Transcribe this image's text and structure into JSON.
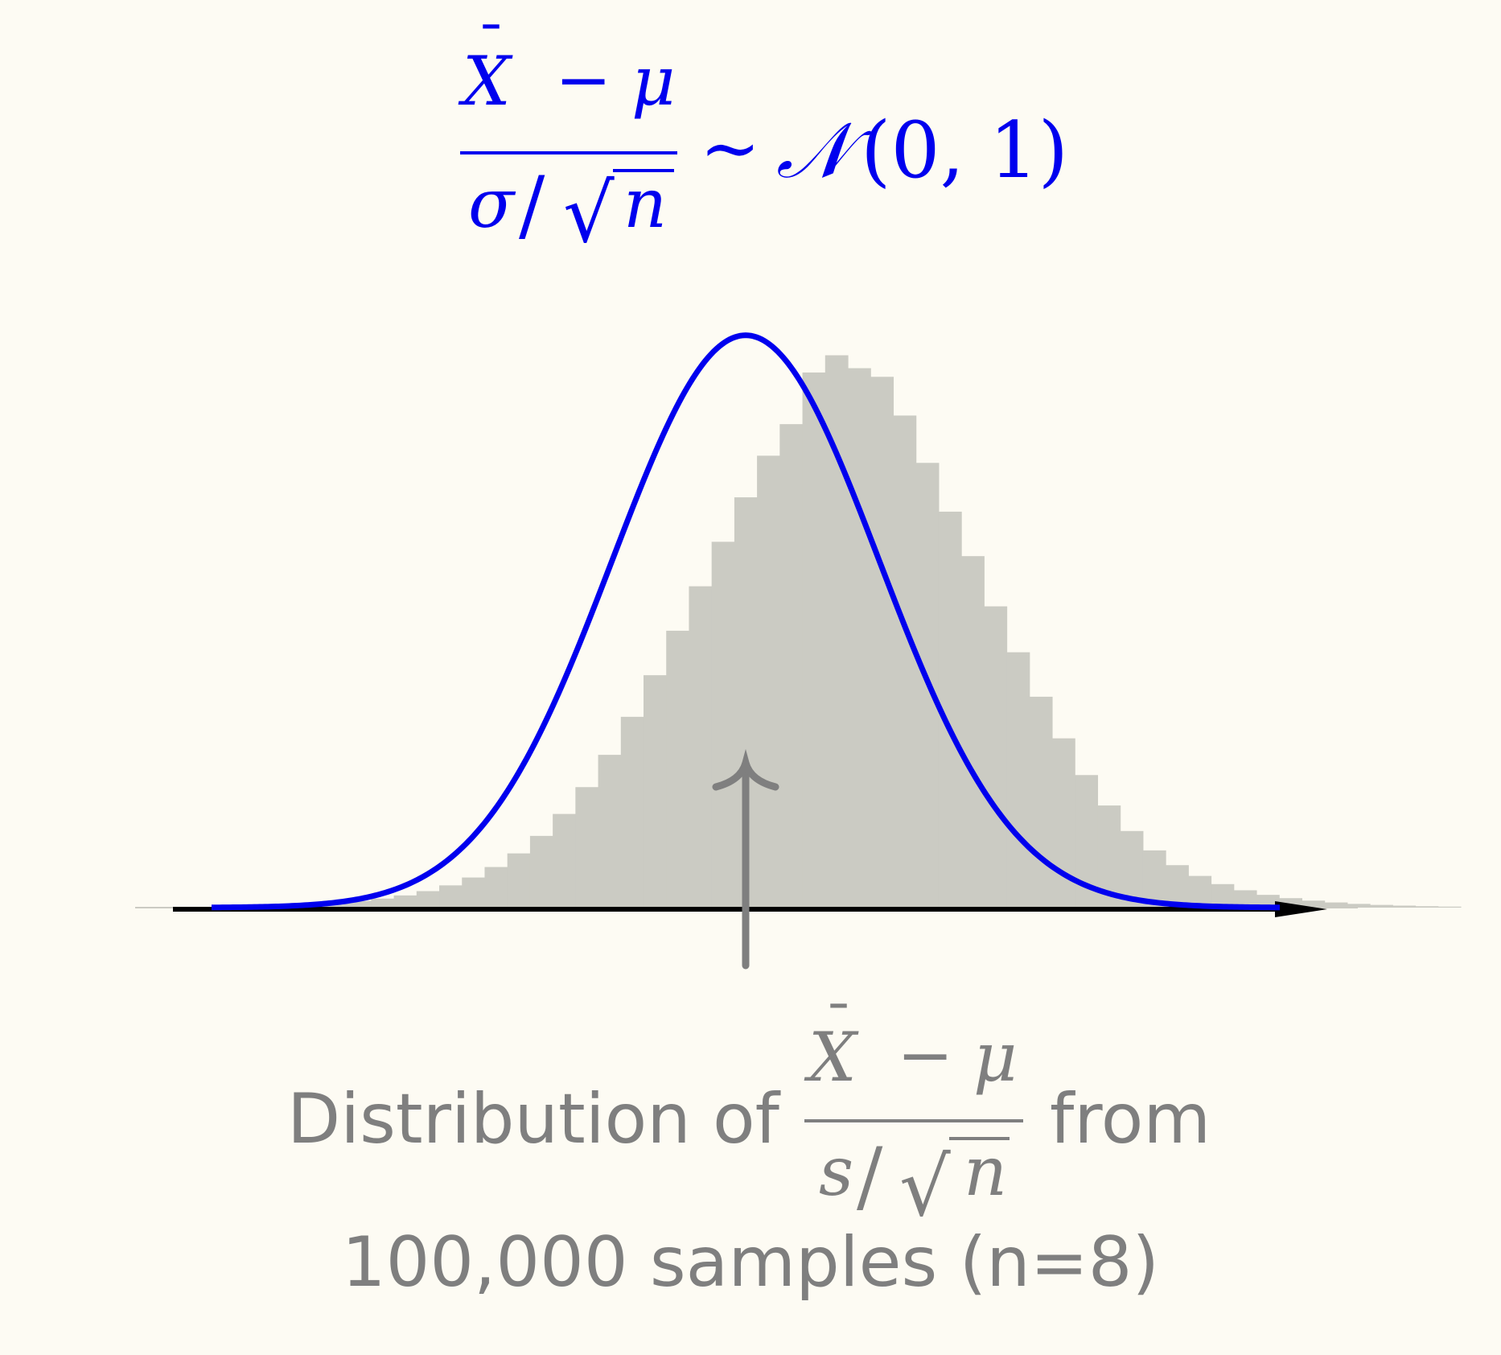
{
  "colors": {
    "background": "#fdfbf3",
    "curve": "#0000ee",
    "histogram": "#cbcbc3",
    "axis": "#000000",
    "annotation": "#7f7f7f"
  },
  "formula": {
    "numerator_var": "X",
    "numerator_bar": "¯",
    "minus": "−",
    "mu": "μ",
    "denominator_var": "σ",
    "slash": "/",
    "sqrt": "√",
    "n": "n",
    "tilde": "∼",
    "dist": "𝒩",
    "args": "(0, 1)"
  },
  "caption": {
    "line1_prefix": "Distribution of",
    "line1_suffix": "from",
    "frac_numerator_var": "X",
    "frac_minus": "−",
    "frac_mu": "μ",
    "frac_denominator_var": "s",
    "frac_slash": "/",
    "frac_sqrt": "√",
    "frac_n": "n",
    "line2": "100,000 samples (n=8)"
  },
  "chart_data": {
    "type": "bar",
    "title": "",
    "xlabel": "",
    "ylabel": "",
    "xlim": [
      -4.5,
      4.5
    ],
    "ylim": [
      0,
      0.4
    ],
    "grid": false,
    "legend": "none",
    "histogram": {
      "bin_width": 0.17,
      "bin_edges_start": -4.165,
      "densities": [
        0.0005,
        0.0008,
        0.0011,
        0.0014,
        0.0019,
        0.0025,
        0.0035,
        0.0047,
        0.0063,
        0.0085,
        0.0115,
        0.0155,
        0.021,
        0.0283,
        0.0378,
        0.05,
        0.0653,
        0.084,
        0.1065,
        0.133,
        0.162,
        0.193,
        0.224,
        0.255,
        0.286,
        0.315,
        0.337,
        0.373,
        0.385,
        0.376,
        0.37,
        0.343,
        0.31,
        0.276,
        0.245,
        0.21,
        0.178,
        0.147,
        0.118,
        0.0924,
        0.0712,
        0.0534,
        0.0399,
        0.0296,
        0.0221,
        0.0164,
        0.0121,
        0.0089,
        0.0066,
        0.0049,
        0.0036,
        0.0026,
        0.0019,
        0.0014,
        0.001,
        0.0007
      ]
    },
    "series": [
      {
        "type": "line",
        "function": "standard normal pdf",
        "mean": 0,
        "sd": 1,
        "x_range": [
          -4,
          4
        ]
      }
    ],
    "annotation_arrow_x": 0
  }
}
